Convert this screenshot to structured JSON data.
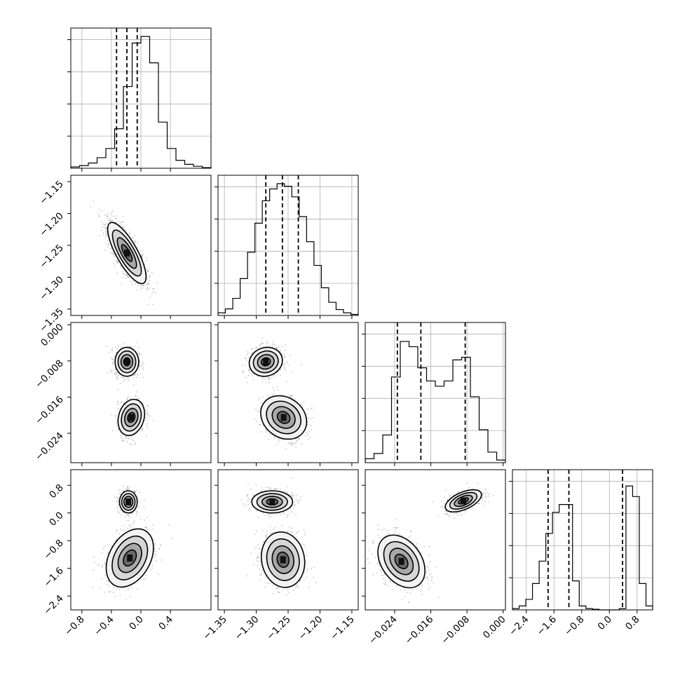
{
  "chart_data": {
    "type": "corner",
    "title": "",
    "parameters": 4,
    "x_ticks": [
      [
        "−0.8",
        "−0.4",
        "0.0",
        "0.4"
      ],
      [
        "−1.35",
        "−1.30",
        "−1.25",
        "−1.20",
        "−1.15"
      ],
      [
        "−0.024",
        "−0.016",
        "−0.008",
        "0.000"
      ],
      [
        "−2.4",
        "−1.6",
        "−0.8",
        "0.0",
        "0.8"
      ]
    ],
    "y_ticks": [
      [],
      [
        "−1.15",
        "−1.20",
        "−1.25",
        "−1.30",
        "−1.35"
      ],
      [
        "0.000",
        "−0.008",
        "−0.016",
        "−0.024"
      ],
      [
        "0.8",
        "0.0",
        "−0.8",
        "−1.6",
        "−2.4"
      ]
    ],
    "ranges": [
      [
        -0.95,
        0.95
      ],
      [
        -1.36,
        -1.14
      ],
      [
        -0.0305,
        0.0005
      ],
      [
        -2.8,
        1.25
      ]
    ],
    "quantiles": [
      [
        -0.33,
        -0.19,
        -0.05
      ],
      [
        -1.285,
        -1.259,
        -1.234
      ],
      [
        -0.0234,
        -0.0182,
        -0.0084
      ],
      [
        -1.77,
        -1.17,
        0.38
      ]
    ],
    "histograms": [
      [
        0.01,
        0.02,
        0.04,
        0.08,
        0.15,
        0.3,
        0.62,
        0.95,
        1.0,
        0.8,
        0.35,
        0.15,
        0.06,
        0.03,
        0.015,
        0.005
      ],
      [
        0.02,
        0.05,
        0.13,
        0.28,
        0.48,
        0.7,
        0.87,
        0.96,
        1.0,
        0.98,
        0.9,
        0.75,
        0.56,
        0.38,
        0.21,
        0.1,
        0.045,
        0.02,
        0.008
      ],
      [
        0.03,
        0.07,
        0.21,
        0.65,
        0.92,
        0.88,
        0.72,
        0.62,
        0.58,
        0.62,
        0.78,
        0.8,
        0.5,
        0.25,
        0.08,
        0.02
      ],
      [
        0.01,
        0.03,
        0.08,
        0.2,
        0.37,
        0.58,
        0.74,
        0.8,
        0.8,
        0.22,
        0.03,
        0.01,
        0.005,
        0,
        0,
        0,
        0.01,
        0.94,
        0.86,
        0.2,
        0.03
      ]
    ],
    "pairs": [
      {
        "i": 1,
        "j": 0,
        "modes": [
          {
            "x": -0.19,
            "y": -1.262,
            "sx": 0.13,
            "sy": 0.024,
            "rho": -0.78,
            "w": 1
          }
        ]
      },
      {
        "i": 2,
        "j": 0,
        "modes": [
          {
            "x": -0.19,
            "y": -0.0082,
            "sx": 0.08,
            "sy": 0.0016,
            "rho": 0.0,
            "w": 0.5
          },
          {
            "x": -0.13,
            "y": -0.0205,
            "sx": 0.09,
            "sy": 0.002,
            "rho": 0.2,
            "w": 0.5
          }
        ]
      },
      {
        "i": 2,
        "j": 1,
        "modes": [
          {
            "x": -1.285,
            "y": -0.0082,
            "sx": 0.013,
            "sy": 0.0016,
            "rho": 0.1,
            "w": 0.5
          },
          {
            "x": -1.257,
            "y": -0.0205,
            "sx": 0.018,
            "sy": 0.0024,
            "rho": -0.2,
            "w": 0.5
          }
        ]
      },
      {
        "i": 3,
        "j": 0,
        "modes": [
          {
            "x": -0.17,
            "y": 0.32,
            "sx": 0.06,
            "sy": 0.16,
            "rho": 0.0,
            "w": 0.42
          },
          {
            "x": -0.15,
            "y": -1.3,
            "sx": 0.16,
            "sy": 0.42,
            "rho": 0.35,
            "w": 0.58
          }
        ]
      },
      {
        "i": 3,
        "j": 1,
        "modes": [
          {
            "x": -1.275,
            "y": 0.32,
            "sx": 0.016,
            "sy": 0.16,
            "rho": 0.0,
            "w": 0.42
          },
          {
            "x": -1.258,
            "y": -1.35,
            "sx": 0.017,
            "sy": 0.4,
            "rho": -0.1,
            "w": 0.58
          }
        ]
      },
      {
        "i": 3,
        "j": 2,
        "modes": [
          {
            "x": -0.0088,
            "y": 0.35,
            "sx": 0.002,
            "sy": 0.16,
            "rho": 0.55,
            "w": 0.42
          },
          {
            "x": -0.0225,
            "y": -1.4,
            "sx": 0.0026,
            "sy": 0.38,
            "rho": -0.35,
            "w": 0.58
          }
        ]
      }
    ]
  }
}
